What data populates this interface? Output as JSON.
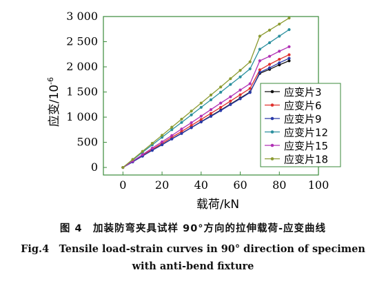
{
  "chart_data": {
    "type": "line",
    "ylabel": "应变/10",
    "ylabel_exp": "-6",
    "xlabel": "载荷/kN",
    "xlim": [
      -10,
      100
    ],
    "ylim": [
      -150,
      3000
    ],
    "xticks": [
      0,
      20,
      40,
      60,
      80,
      100
    ],
    "yticks": [
      0,
      500,
      1000,
      1500,
      2000,
      2500,
      3000
    ],
    "ytick_labels": [
      "0",
      "500",
      "1 000",
      "1 500",
      "2 000",
      "2 500",
      "3 000"
    ],
    "legend_position": "center-right",
    "x": [
      0,
      5,
      10,
      15,
      20,
      25,
      30,
      35,
      40,
      45,
      50,
      55,
      60,
      65,
      70,
      75,
      80,
      85
    ],
    "series": [
      {
        "name": "应变片3",
        "color": "#111111",
        "values": [
          0,
          115,
          230,
          345,
          455,
          570,
          680,
          795,
          910,
          1025,
          1140,
          1260,
          1380,
          1500,
          1870,
          1950,
          2040,
          2120
        ]
      },
      {
        "name": "应变片6",
        "color": "#e0302c",
        "values": [
          0,
          120,
          240,
          360,
          480,
          600,
          715,
          835,
          955,
          1075,
          1195,
          1320,
          1445,
          1570,
          1940,
          2050,
          2150,
          2240
        ]
      },
      {
        "name": "应变片9",
        "color": "#2a3aa8",
        "values": [
          0,
          110,
          225,
          340,
          450,
          565,
          675,
          790,
          905,
          1015,
          1130,
          1250,
          1365,
          1490,
          1890,
          1980,
          2080,
          2170
        ]
      },
      {
        "name": "应变片12",
        "color": "#2a8f9e",
        "values": [
          0,
          150,
          300,
          450,
          600,
          750,
          895,
          1045,
          1195,
          1345,
          1495,
          1650,
          1800,
          1960,
          2350,
          2480,
          2610,
          2740
        ]
      },
      {
        "name": "应变片15",
        "color": "#b030b5",
        "values": [
          0,
          125,
          255,
          385,
          510,
          635,
          765,
          890,
          1020,
          1150,
          1280,
          1405,
          1540,
          1665,
          2120,
          2210,
          2310,
          2400
        ]
      },
      {
        "name": "应变片18",
        "color": "#8b9a30",
        "values": [
          0,
          160,
          320,
          480,
          640,
          800,
          960,
          1120,
          1280,
          1440,
          1600,
          1765,
          1930,
          2100,
          2610,
          2730,
          2850,
          2970
        ]
      }
    ]
  },
  "captions": {
    "cn": "图 4　加装防弯夹具试样 90°方向的拉伸载荷-应变曲线",
    "en_line1": "Fig.4　Tensile load-strain curves in 90° direction of specimen",
    "en_line2": "with anti-bend fixture"
  },
  "frame_color": "#3a8a3a",
  "grid": false
}
